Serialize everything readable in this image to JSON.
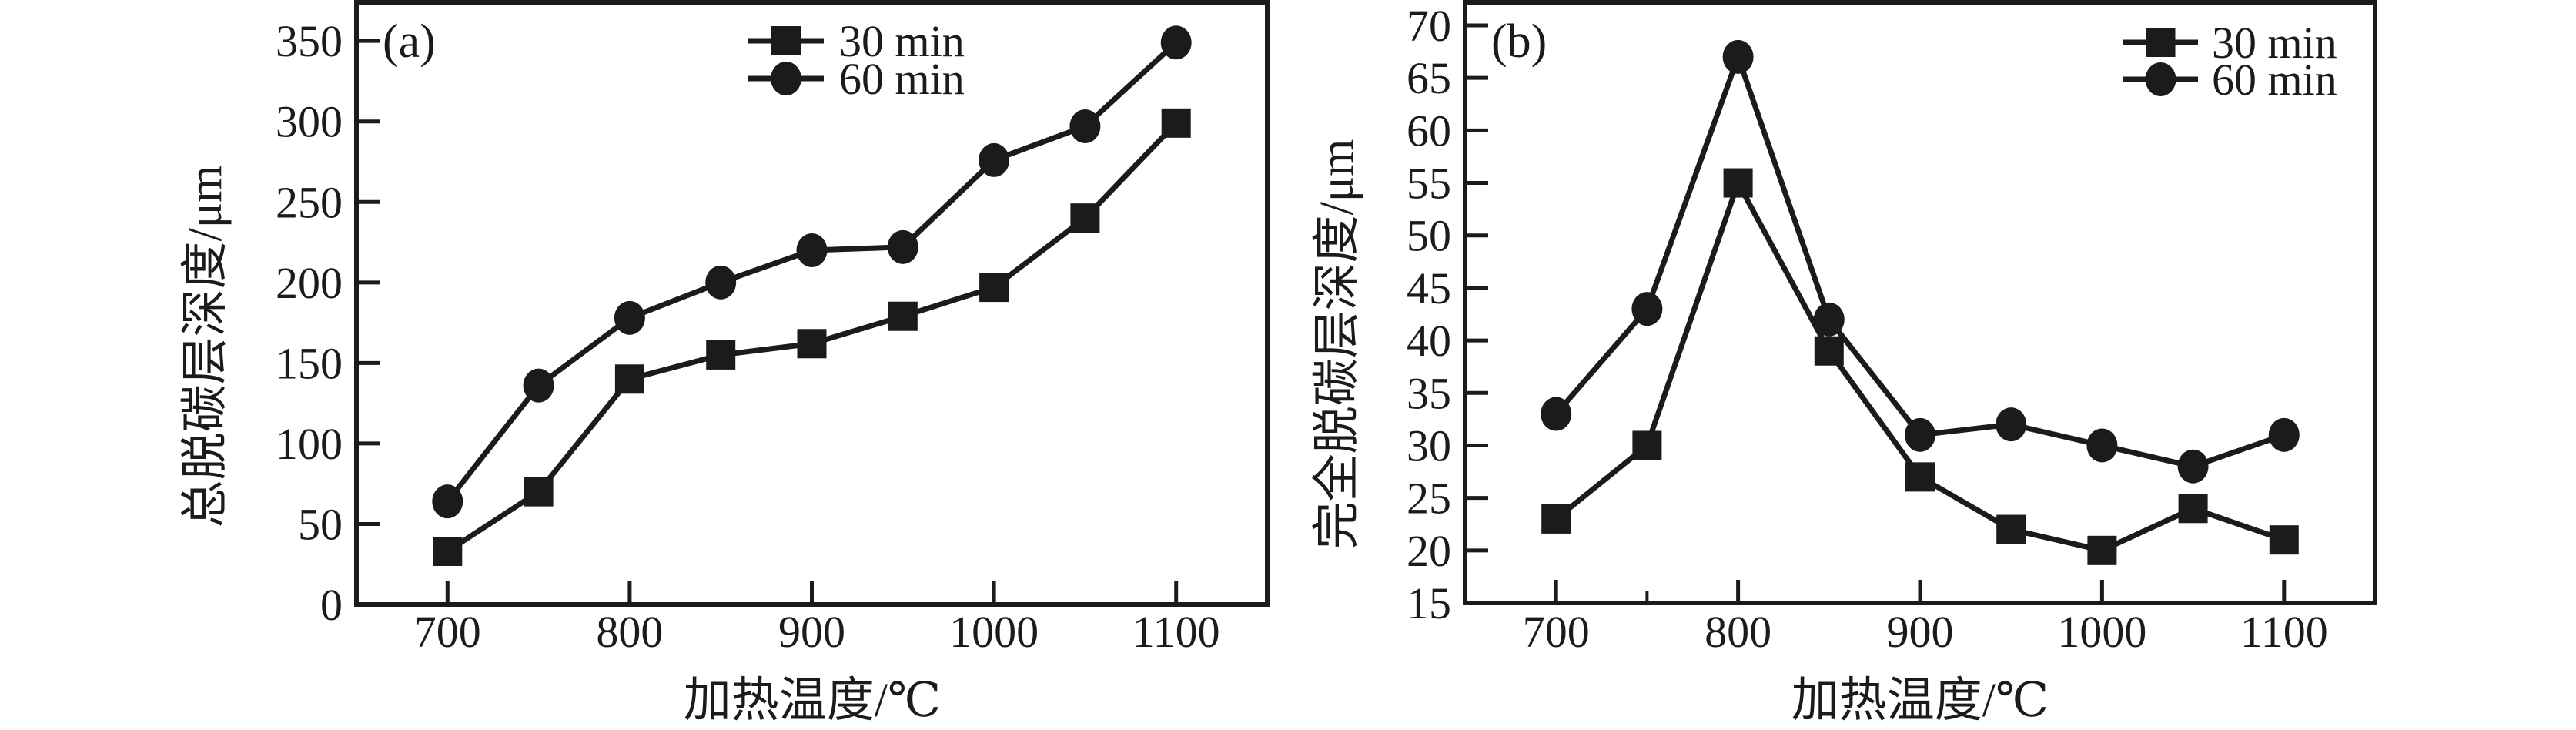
{
  "figure": {
    "description": "Two-panel line chart of decarburization layer depth versus heating temperature",
    "background_color": "#ffffff",
    "ink_color": "#1b1b1b"
  },
  "chart_data": [
    {
      "type": "line",
      "panel_label": "(a)",
      "xlabel": "加热温度/℃",
      "ylabel": "总脱碳层深度/μm",
      "x": [
        700,
        750,
        800,
        850,
        900,
        950,
        1000,
        1050,
        1100
      ],
      "series": [
        {
          "name": "30 min",
          "marker": "square",
          "values": [
            33,
            70,
            140,
            155,
            162,
            179,
            197,
            240,
            299
          ]
        },
        {
          "name": "60 min",
          "marker": "circle",
          "values": [
            64,
            136,
            178,
            200,
            220,
            222,
            276,
            297,
            349
          ]
        }
      ],
      "xticks": [
        700,
        800,
        900,
        1000,
        1100
      ],
      "yticks": [
        0,
        50,
        100,
        150,
        200,
        250,
        300,
        350
      ],
      "minor_xticks": [],
      "xlim": [
        650,
        1150
      ],
      "ylim": [
        0,
        374
      ],
      "grid": false,
      "legend_entries": [
        "30 min",
        "60 min"
      ],
      "legend_position": "top-center-inside"
    },
    {
      "type": "line",
      "panel_label": "(b)",
      "xlabel": "加热温度/℃",
      "ylabel": "完全脱碳层深度/μm",
      "x": [
        700,
        750,
        800,
        850,
        900,
        950,
        1000,
        1050,
        1100
      ],
      "series": [
        {
          "name": "30 min",
          "marker": "square",
          "values": [
            23,
            30,
            55,
            39,
            27,
            22,
            20,
            24,
            21
          ]
        },
        {
          "name": "60 min",
          "marker": "circle",
          "values": [
            33,
            43,
            67,
            42,
            31,
            32,
            30,
            28,
            31
          ]
        }
      ],
      "xticks": [
        700,
        800,
        900,
        1000,
        1100
      ],
      "yticks": [
        15,
        20,
        25,
        30,
        35,
        40,
        45,
        50,
        55,
        60,
        65,
        70
      ],
      "minor_xticks": [
        750
      ],
      "xlim": [
        650,
        1150
      ],
      "ylim": [
        15,
        72.2
      ],
      "grid": false,
      "legend_entries": [
        "30 min",
        "60 min"
      ],
      "legend_position": "top-right-inside"
    }
  ]
}
